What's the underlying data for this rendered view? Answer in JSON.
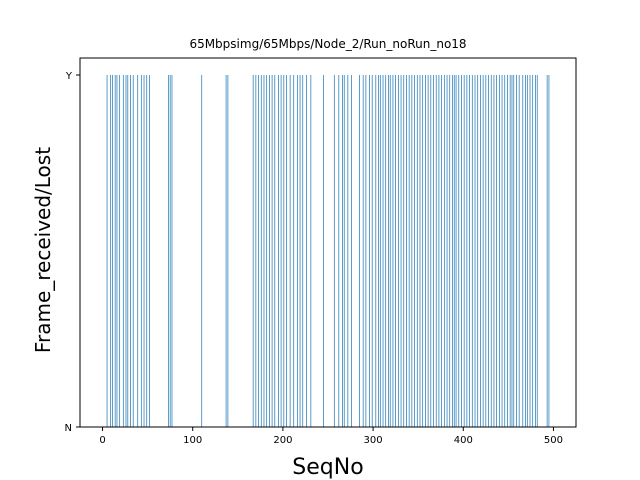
{
  "chart_data": {
    "type": "bar",
    "title": "65Mbpsimg/65Mbps/Node_2/Run_noRun_no18",
    "xlabel": "SeqNo",
    "ylabel": "Frame_received/Lost",
    "xlim": [
      -25,
      525
    ],
    "ylim": [
      0,
      1
    ],
    "xticks": [
      0,
      100,
      200,
      300,
      400,
      500
    ],
    "xtick_labels": [
      "0",
      "100",
      "200",
      "300",
      "400",
      "500"
    ],
    "yticks": [
      0,
      1
    ],
    "ytick_labels": [
      "N",
      "Y"
    ],
    "grid": false,
    "bar_color": "#1f77b4",
    "bar_value": 1,
    "received_seqno": [
      5,
      9,
      11,
      14,
      16,
      19,
      23,
      26,
      28,
      31,
      34,
      39,
      43,
      46,
      49,
      52,
      73,
      75,
      77,
      110,
      137,
      139,
      167,
      170,
      173,
      176,
      179,
      182,
      185,
      188,
      191,
      195,
      198,
      201,
      204,
      208,
      212,
      216,
      219,
      222,
      226,
      231,
      245,
      257,
      262,
      266,
      268,
      272,
      276,
      285,
      289,
      292,
      296,
      299,
      303,
      306,
      308,
      311,
      314,
      317,
      319,
      322,
      325,
      328,
      331,
      334,
      337,
      340,
      343,
      346,
      349,
      352,
      355,
      358,
      361,
      364,
      367,
      370,
      373,
      376,
      379,
      382,
      385,
      388,
      390,
      392,
      395,
      398,
      401,
      404,
      407,
      410,
      413,
      416,
      419,
      422,
      425,
      428,
      431,
      434,
      437,
      440,
      443,
      446,
      449,
      452,
      454,
      456,
      459,
      462,
      466,
      469,
      471,
      474,
      477,
      480,
      482,
      493,
      495
    ]
  }
}
